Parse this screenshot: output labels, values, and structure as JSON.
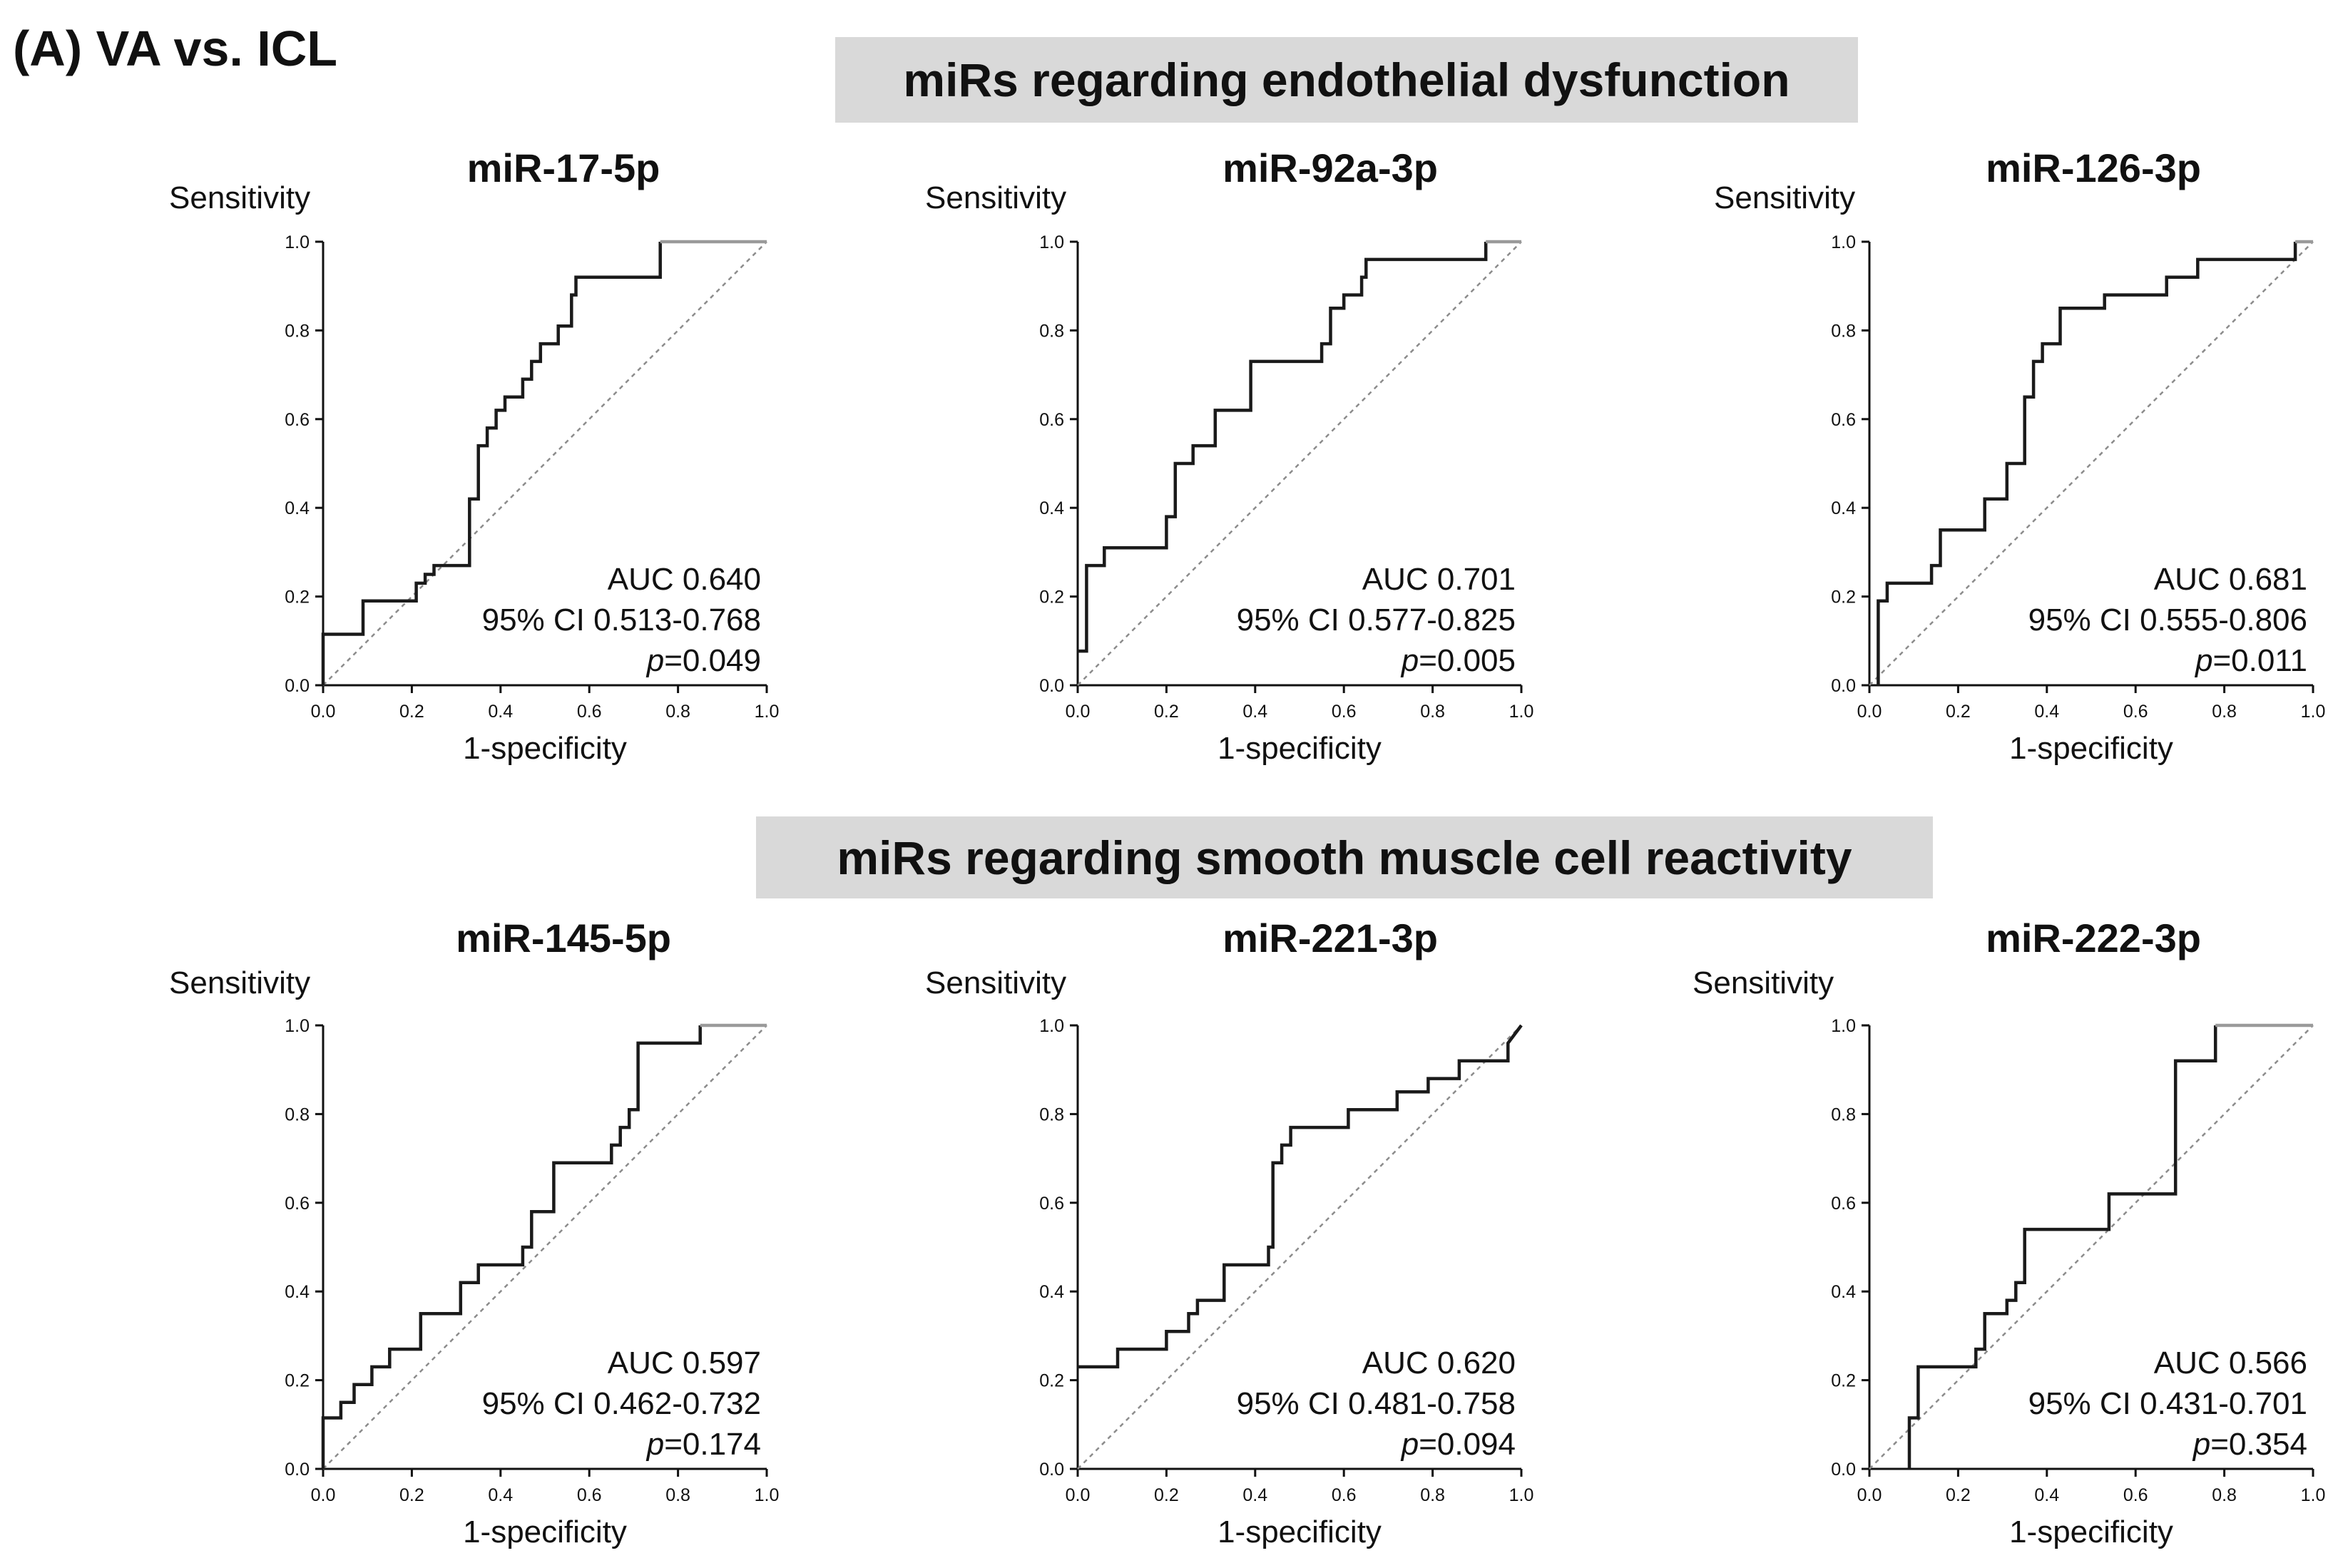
{
  "figure": {
    "panel_label": "(A) VA vs. ICL",
    "sections": [
      "miRs regarding endothelial dysfunction",
      "miRs regarding smooth muscle cell reactivity"
    ],
    "colors": {
      "curve": "#1a1a1a",
      "curve_tail": "#9a9a9a",
      "reference": "#8c8c8c",
      "banner": "#d9d9d9"
    }
  },
  "chart_data": [
    {
      "type": "line",
      "title": "miR-17-5p",
      "ylabel": "Sensitivity",
      "xlabel": "1-specificity",
      "xlim": [
        0,
        1
      ],
      "ylim": [
        0,
        1
      ],
      "xticks": [
        "0.0",
        "0.2",
        "0.4",
        "0.6",
        "0.8",
        "1.0"
      ],
      "yticks": [
        "0.0",
        "0.2",
        "0.4",
        "0.6",
        "0.8",
        "1.0"
      ],
      "annotation": {
        "auc": "AUC 0.640",
        "ci": "95% CI 0.513-0.768",
        "p_label": "p",
        "p_value": "=0.049"
      },
      "series": [
        {
          "name": "ROC",
          "x": [
            0,
            0,
            0.09,
            0.09,
            0.21,
            0.21,
            0.23,
            0.23,
            0.25,
            0.25,
            0.33,
            0.33,
            0.35,
            0.35,
            0.37,
            0.37,
            0.39,
            0.39,
            0.41,
            0.41,
            0.45,
            0.45,
            0.47,
            0.47,
            0.49,
            0.49,
            0.53,
            0.53,
            0.56,
            0.56,
            0.57,
            0.57,
            0.76,
            0.76,
            1
          ],
          "y": [
            0,
            0.115,
            0.115,
            0.19,
            0.19,
            0.23,
            0.23,
            0.25,
            0.25,
            0.27,
            0.27,
            0.42,
            0.42,
            0.54,
            0.54,
            0.58,
            0.58,
            0.62,
            0.62,
            0.65,
            0.65,
            0.69,
            0.69,
            0.73,
            0.73,
            0.77,
            0.77,
            0.81,
            0.81,
            0.88,
            0.88,
            0.92,
            0.92,
            1,
            1
          ]
        }
      ],
      "reference": {
        "x": [
          0,
          1
        ],
        "y": [
          0,
          1
        ]
      }
    },
    {
      "type": "line",
      "title": "miR-92a-3p",
      "ylabel": "Sensitivity",
      "xlabel": "1-specificity",
      "xlim": [
        0,
        1
      ],
      "ylim": [
        0,
        1
      ],
      "xticks": [
        "0.0",
        "0.2",
        "0.4",
        "0.6",
        "0.8",
        "1.0"
      ],
      "yticks": [
        "0.0",
        "0.2",
        "0.4",
        "0.6",
        "0.8",
        "1.0"
      ],
      "annotation": {
        "auc": "AUC 0.701",
        "ci": "95% CI 0.577-0.825",
        "p_label": "p",
        "p_value": "=0.005"
      },
      "series": [
        {
          "name": "ROC",
          "x": [
            0,
            0.02,
            0.02,
            0.06,
            0.06,
            0.2,
            0.2,
            0.22,
            0.22,
            0.26,
            0.26,
            0.31,
            0.31,
            0.39,
            0.39,
            0.55,
            0.55,
            0.57,
            0.57,
            0.6,
            0.6,
            0.64,
            0.64,
            0.65,
            0.65,
            0.92,
            0.92,
            1
          ],
          "y": [
            0.077,
            0.077,
            0.27,
            0.27,
            0.31,
            0.31,
            0.38,
            0.38,
            0.5,
            0.5,
            0.54,
            0.54,
            0.62,
            0.62,
            0.73,
            0.73,
            0.77,
            0.77,
            0.85,
            0.85,
            0.88,
            0.88,
            0.92,
            0.92,
            0.96,
            0.96,
            1,
            1
          ]
        }
      ],
      "reference": {
        "x": [
          0,
          1
        ],
        "y": [
          0,
          1
        ]
      }
    },
    {
      "type": "line",
      "title": "miR-126-3p",
      "ylabel": "Sensitivity",
      "xlabel": "1-specificity",
      "xlim": [
        0,
        1
      ],
      "ylim": [
        0,
        1
      ],
      "xticks": [
        "0.0",
        "0.2",
        "0.4",
        "0.6",
        "0.8",
        "1.0"
      ],
      "yticks": [
        "0.0",
        "0.2",
        "0.4",
        "0.6",
        "0.8",
        "1.0"
      ],
      "annotation": {
        "auc": "AUC 0.681",
        "ci": "95% CI 0.555-0.806",
        "p_label": "p",
        "p_value": "=0.011"
      },
      "series": [
        {
          "name": "ROC",
          "x": [
            0.02,
            0.02,
            0.04,
            0.04,
            0.14,
            0.14,
            0.16,
            0.16,
            0.26,
            0.26,
            0.31,
            0.31,
            0.35,
            0.35,
            0.37,
            0.37,
            0.39,
            0.39,
            0.43,
            0.43,
            0.53,
            0.53,
            0.67,
            0.67,
            0.74,
            0.74,
            0.96,
            0.96,
            1
          ],
          "y": [
            0,
            0.19,
            0.19,
            0.23,
            0.23,
            0.27,
            0.27,
            0.35,
            0.35,
            0.42,
            0.42,
            0.5,
            0.5,
            0.65,
            0.65,
            0.73,
            0.73,
            0.77,
            0.77,
            0.85,
            0.85,
            0.88,
            0.88,
            0.92,
            0.92,
            0.96,
            0.96,
            1,
            1
          ]
        }
      ],
      "reference": {
        "x": [
          0,
          1
        ],
        "y": [
          0,
          1
        ]
      }
    },
    {
      "type": "line",
      "title": "miR-145-5p",
      "ylabel": "Sensitivity",
      "xlabel": "1-specificity",
      "xlim": [
        0,
        1
      ],
      "ylim": [
        0,
        1
      ],
      "xticks": [
        "0.0",
        "0.2",
        "0.4",
        "0.6",
        "0.8",
        "1.0"
      ],
      "yticks": [
        "0.0",
        "0.2",
        "0.4",
        "0.6",
        "0.8",
        "1.0"
      ],
      "annotation": {
        "auc": "AUC 0.597",
        "ci": "95% CI 0.462-0.732",
        "p_label": "p",
        "p_value": "=0.174"
      },
      "series": [
        {
          "name": "ROC",
          "x": [
            0,
            0,
            0.04,
            0.04,
            0.07,
            0.07,
            0.11,
            0.11,
            0.15,
            0.15,
            0.22,
            0.22,
            0.31,
            0.31,
            0.35,
            0.35,
            0.45,
            0.45,
            0.47,
            0.47,
            0.52,
            0.52,
            0.65,
            0.65,
            0.67,
            0.67,
            0.69,
            0.69,
            0.71,
            0.71,
            0.85,
            0.85,
            1
          ],
          "y": [
            0,
            0.115,
            0.115,
            0.15,
            0.15,
            0.19,
            0.19,
            0.23,
            0.23,
            0.27,
            0.27,
            0.35,
            0.35,
            0.42,
            0.42,
            0.46,
            0.46,
            0.5,
            0.5,
            0.58,
            0.58,
            0.69,
            0.69,
            0.73,
            0.73,
            0.77,
            0.77,
            0.81,
            0.81,
            0.96,
            0.96,
            1,
            1
          ]
        }
      ],
      "reference": {
        "x": [
          0,
          1
        ],
        "y": [
          0,
          1
        ]
      }
    },
    {
      "type": "line",
      "title": "miR-221-3p",
      "ylabel": "Sensitivity",
      "xlabel": "1-specificity",
      "xlim": [
        0,
        1
      ],
      "ylim": [
        0,
        1
      ],
      "xticks": [
        "0.0",
        "0.2",
        "0.4",
        "0.6",
        "0.8",
        "1.0"
      ],
      "yticks": [
        "0.0",
        "0.2",
        "0.4",
        "0.6",
        "0.8",
        "1.0"
      ],
      "annotation": {
        "auc": "AUC 0.620",
        "ci": "95% CI 0.481-0.758",
        "p_label": "p",
        "p_value": "=0.094"
      },
      "series": [
        {
          "name": "ROC",
          "x": [
            0,
            0.09,
            0.09,
            0.2,
            0.2,
            0.25,
            0.25,
            0.27,
            0.27,
            0.33,
            0.33,
            0.43,
            0.43,
            0.44,
            0.44,
            0.46,
            0.46,
            0.48,
            0.48,
            0.61,
            0.61,
            0.72,
            0.72,
            0.79,
            0.79,
            0.86,
            0.86,
            0.97,
            0.97,
            1
          ],
          "y": [
            0.23,
            0.23,
            0.27,
            0.27,
            0.31,
            0.31,
            0.35,
            0.35,
            0.38,
            0.38,
            0.46,
            0.46,
            0.5,
            0.5,
            0.69,
            0.69,
            0.73,
            0.73,
            0.77,
            0.77,
            0.81,
            0.81,
            0.85,
            0.85,
            0.88,
            0.88,
            0.92,
            0.92,
            0.96,
            1
          ]
        }
      ],
      "reference": {
        "x": [
          0,
          1
        ],
        "y": [
          0,
          1
        ]
      }
    },
    {
      "type": "line",
      "title": "miR-222-3p",
      "ylabel": "Sensitivity",
      "xlabel": "1-specificity",
      "xlim": [
        0,
        1
      ],
      "ylim": [
        0,
        1
      ],
      "xticks": [
        "0.0",
        "0.2",
        "0.4",
        "0.6",
        "0.8",
        "1.0"
      ],
      "yticks": [
        "0.0",
        "0.2",
        "0.4",
        "0.6",
        "0.8",
        "1.0"
      ],
      "annotation": {
        "auc": "AUC 0.566",
        "ci": "95% CI 0.431-0.701",
        "p_label": "p",
        "p_value": "=0.354"
      },
      "series": [
        {
          "name": "ROC",
          "x": [
            0.09,
            0.09,
            0.11,
            0.11,
            0.24,
            0.24,
            0.26,
            0.26,
            0.31,
            0.31,
            0.33,
            0.33,
            0.35,
            0.35,
            0.54,
            0.54,
            0.69,
            0.69,
            0.78,
            0.78,
            1
          ],
          "y": [
            0,
            0.115,
            0.115,
            0.23,
            0.23,
            0.27,
            0.27,
            0.35,
            0.35,
            0.38,
            0.38,
            0.42,
            0.42,
            0.54,
            0.54,
            0.62,
            0.62,
            0.92,
            0.92,
            1,
            1
          ]
        }
      ],
      "reference": {
        "x": [
          0,
          1
        ],
        "y": [
          0,
          1
        ]
      }
    }
  ]
}
